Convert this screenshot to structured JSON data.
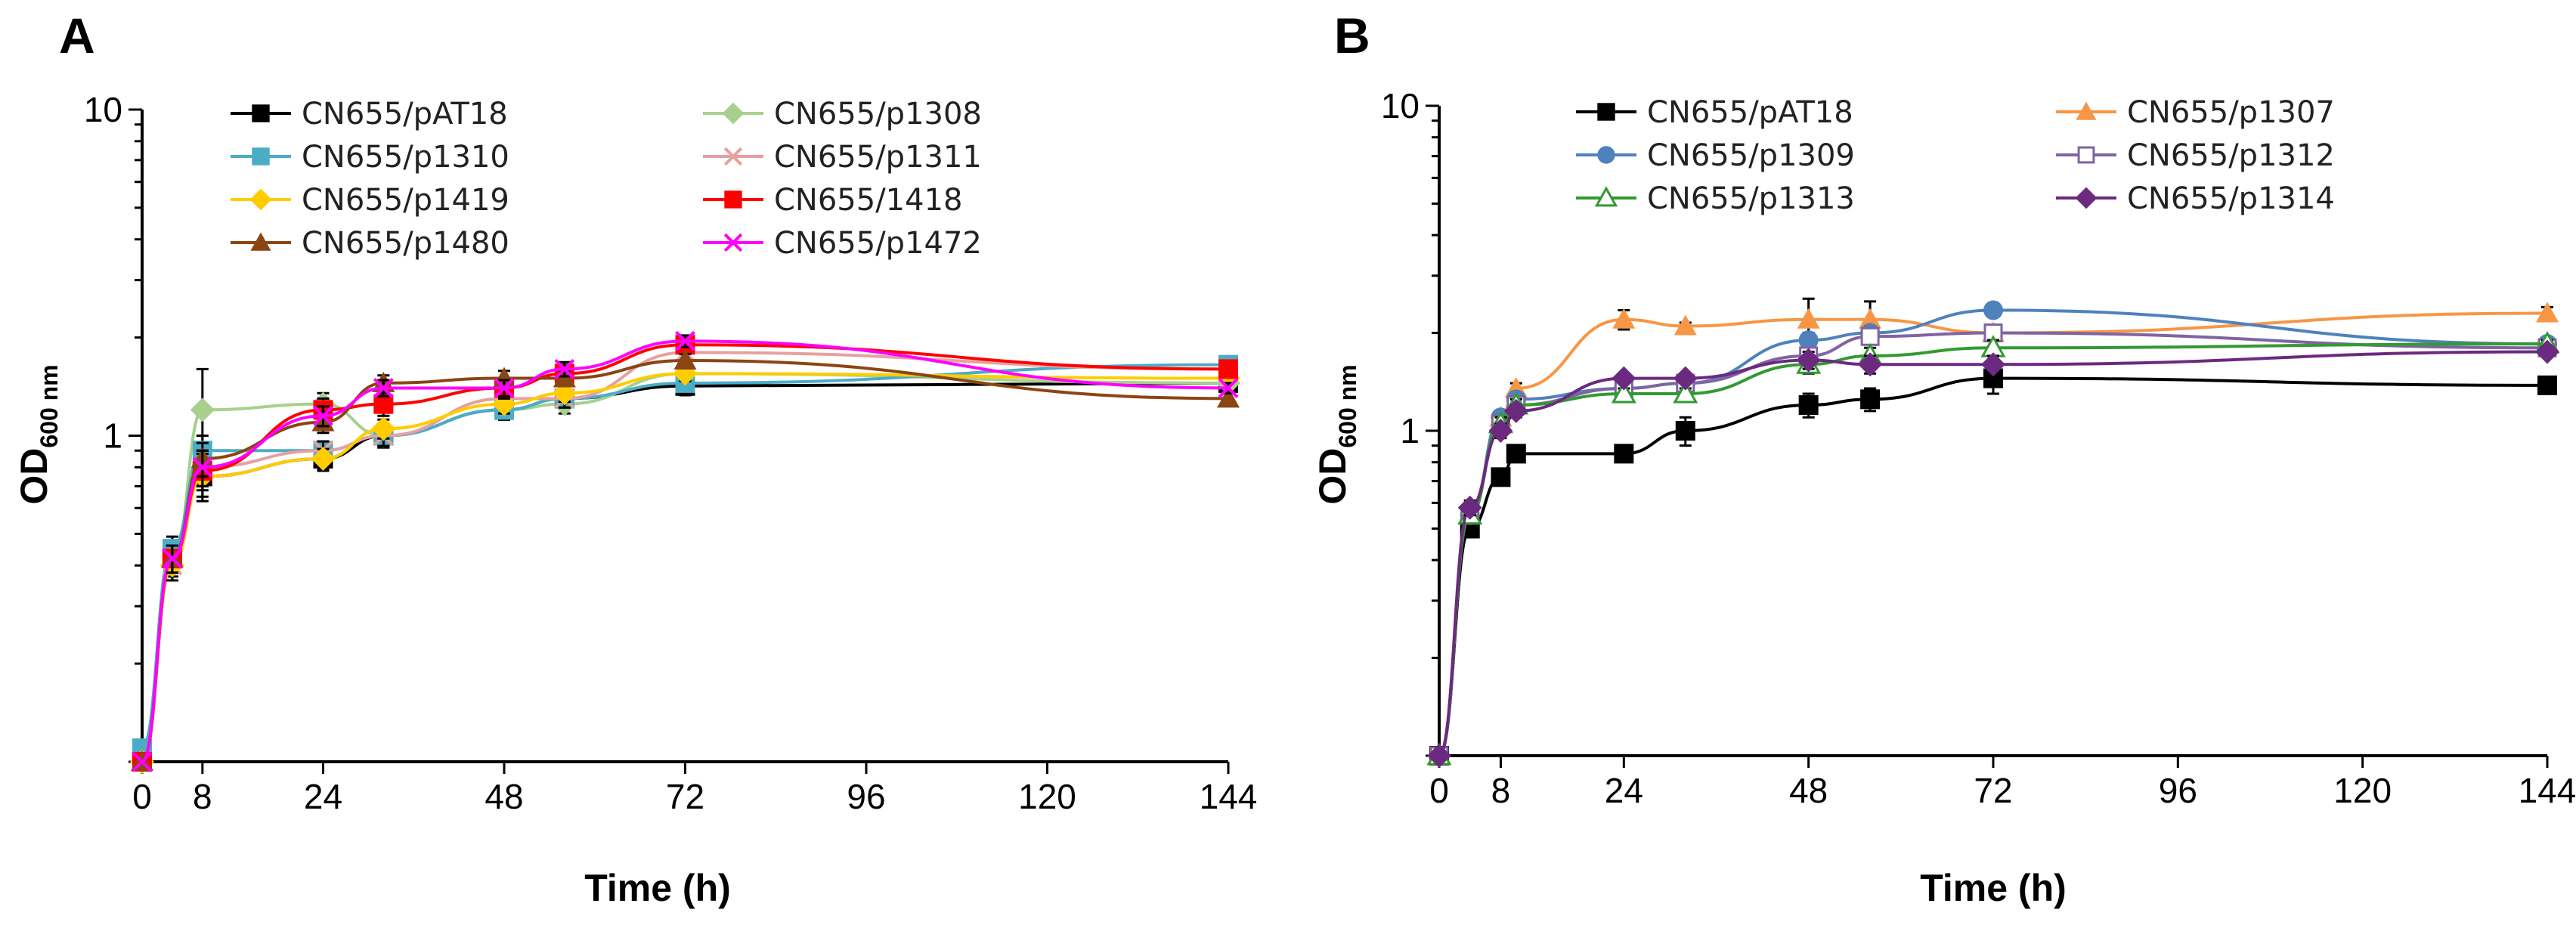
{
  "chart_data": [
    {
      "panel": "A",
      "type": "line",
      "yscale": "log",
      "xlabel": "Time (h)",
      "ylabel": "OD",
      "ylabel_sub": "600 nm",
      "xlim": [
        0,
        144
      ],
      "ylim": [
        0.1,
        10
      ],
      "xticks": [
        "0",
        "8",
        "24",
        "48",
        "72",
        "96",
        "120",
        "144"
      ],
      "yticks": [
        "1",
        "10"
      ],
      "legend_position": "top",
      "x": [
        0,
        4,
        8,
        24,
        32,
        48,
        56,
        72,
        144
      ],
      "series": [
        {
          "name": "CN655/pAT18",
          "color": "#000000",
          "marker": "square",
          "values": [
            0.1,
            0.42,
            0.75,
            0.85,
            1.0,
            1.2,
            1.3,
            1.42,
            1.45
          ],
          "errors": [
            0,
            0.05,
            0.12,
            0.07,
            0.08,
            0.08,
            0.08,
            0.09,
            0.05
          ]
        },
        {
          "name": "CN655/p1308",
          "color": "#a8d08d",
          "marker": "diamond",
          "values": [
            0.1,
            0.4,
            1.2,
            1.25,
            1.0,
            1.2,
            1.25,
            1.55,
            1.45
          ],
          "errors": [
            0,
            0.04,
            0.4,
            0.1,
            0.08,
            0.08,
            0.08,
            0.1,
            0.05
          ]
        },
        {
          "name": "CN655/p1310",
          "color": "#4bacc6",
          "marker": "square",
          "values": [
            0.11,
            0.45,
            0.9,
            0.9,
            1.0,
            1.2,
            1.3,
            1.45,
            1.65
          ],
          "errors": [
            0,
            0.04,
            0.1,
            0.06,
            0.07,
            0.08,
            0.08,
            0.08,
            0.05
          ]
        },
        {
          "name": "CN655/p1311",
          "color": "#e6a0a0",
          "marker": "x",
          "values": [
            0.1,
            0.4,
            0.8,
            0.9,
            1.0,
            1.3,
            1.3,
            1.8,
            1.6
          ],
          "errors": [
            0,
            0.04,
            0.1,
            0.06,
            0.07,
            0.08,
            0.08,
            0.08,
            0.05
          ]
        },
        {
          "name": "CN655/p1419",
          "color": "#ffcc00",
          "marker": "diamond",
          "values": [
            0.1,
            0.4,
            0.75,
            0.85,
            1.05,
            1.25,
            1.35,
            1.55,
            1.5
          ],
          "errors": [
            0,
            0.04,
            0.1,
            0.06,
            0.07,
            0.08,
            0.08,
            0.08,
            0.05
          ]
        },
        {
          "name": "CN655/1418",
          "color": "#ff0000",
          "marker": "square",
          "values": [
            0.1,
            0.42,
            0.78,
            1.2,
            1.25,
            1.4,
            1.55,
            1.9,
            1.6
          ],
          "errors": [
            0,
            0.04,
            0.1,
            0.1,
            0.1,
            0.1,
            0.1,
            0.1,
            0.05
          ]
        },
        {
          "name": "CN655/p1480",
          "color": "#8b4513",
          "marker": "triangle",
          "values": [
            0.1,
            0.42,
            0.85,
            1.1,
            1.45,
            1.5,
            1.5,
            1.7,
            1.3
          ],
          "errors": [
            0,
            0.04,
            0.1,
            0.08,
            0.08,
            0.08,
            0.08,
            0.08,
            0.05
          ]
        },
        {
          "name": "CN655/p1472",
          "color": "#ff00ff",
          "marker": "x",
          "values": [
            0.1,
            0.42,
            0.8,
            1.15,
            1.4,
            1.4,
            1.6,
            1.95,
            1.4
          ],
          "errors": [
            0,
            0.04,
            0.1,
            0.08,
            0.08,
            0.08,
            0.08,
            0.08,
            0.05
          ]
        }
      ]
    },
    {
      "panel": "B",
      "type": "line",
      "yscale": "log",
      "xlabel": "Time (h)",
      "ylabel": "OD",
      "ylabel_sub": "600 nm",
      "xlim": [
        0,
        144
      ],
      "ylim": [
        0.1,
        10
      ],
      "xticks": [
        "0",
        "8",
        "24",
        "48",
        "72",
        "96",
        "120",
        "144"
      ],
      "yticks": [
        "1",
        "10"
      ],
      "legend_position": "top",
      "x": [
        0,
        4,
        8,
        10,
        24,
        32,
        48,
        56,
        72,
        144
      ],
      "series": [
        {
          "name": "CN655/pAT18",
          "color": "#000000",
          "marker": "square",
          "values": [
            0.1,
            0.5,
            0.72,
            0.85,
            0.85,
            1.0,
            1.2,
            1.25,
            1.45,
            1.38
          ],
          "errors": [
            0,
            0.03,
            0.04,
            0.04,
            0.04,
            0.1,
            0.1,
            0.1,
            0.15,
            0.05
          ]
        },
        {
          "name": "CN655/p1307",
          "color": "#f79646",
          "marker": "triangle",
          "values": [
            0.1,
            0.55,
            1.1,
            1.35,
            2.2,
            2.1,
            2.2,
            2.2,
            2.0,
            2.3
          ],
          "errors": [
            0,
            0.03,
            0.05,
            0.05,
            0.15,
            0.05,
            0.35,
            0.3,
            0.1,
            0.1
          ]
        },
        {
          "name": "CN655/p1309",
          "color": "#4f81bd",
          "marker": "circle",
          "values": [
            0.1,
            0.55,
            1.1,
            1.25,
            1.35,
            1.4,
            1.9,
            2.0,
            2.35,
            1.85
          ],
          "errors": [
            0,
            0.03,
            0.05,
            0.05,
            0.05,
            0.05,
            0.1,
            0.1,
            0.1,
            0.05
          ]
        },
        {
          "name": "CN655/p1312",
          "color": "#8064a2",
          "marker": "open-square",
          "values": [
            0.1,
            0.55,
            1.05,
            1.2,
            1.35,
            1.4,
            1.7,
            1.95,
            2.0,
            1.8
          ],
          "errors": [
            0,
            0.03,
            0.05,
            0.05,
            0.05,
            0.05,
            0.1,
            0.1,
            0.1,
            0.05
          ]
        },
        {
          "name": "CN655/p1313",
          "color": "#339933",
          "marker": "open-triangle",
          "values": [
            0.1,
            0.55,
            1.05,
            1.2,
            1.3,
            1.3,
            1.6,
            1.7,
            1.8,
            1.85
          ],
          "errors": [
            0,
            0.03,
            0.05,
            0.05,
            0.05,
            0.05,
            0.1,
            0.1,
            0.1,
            0.05
          ]
        },
        {
          "name": "CN655/p1314",
          "color": "#6b2a7f",
          "marker": "diamond",
          "values": [
            0.1,
            0.58,
            1.0,
            1.15,
            1.45,
            1.45,
            1.65,
            1.6,
            1.6,
            1.75
          ],
          "errors": [
            0,
            0.03,
            0.05,
            0.05,
            0.05,
            0.05,
            0.1,
            0.1,
            0.1,
            0.05
          ]
        }
      ]
    }
  ]
}
